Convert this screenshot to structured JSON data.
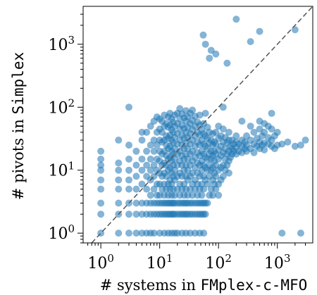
{
  "chart_data": {
    "type": "scatter",
    "xlabel_prefix": "# systems in ",
    "xlabel_code": "FMplex-c-MFO",
    "ylabel_prefix": "# pivots in ",
    "ylabel_code": "Simplex",
    "xscale": "log",
    "yscale": "log",
    "xlim": [
      0.5,
      4000
    ],
    "ylim": [
      0.7,
      4000
    ],
    "grid": false,
    "diagonal": "y = x (dashed)",
    "colors": {
      "points": "#1f77b4",
      "diagonal": "#555555"
    },
    "ticks": {
      "x": [
        {
          "value": 1,
          "base": "10",
          "exp": "0"
        },
        {
          "value": 10,
          "base": "10",
          "exp": "1"
        },
        {
          "value": 100,
          "base": "10",
          "exp": "2"
        },
        {
          "value": 1000,
          "base": "10",
          "exp": "3"
        }
      ],
      "y": [
        {
          "value": 1,
          "base": "10",
          "exp": "0"
        },
        {
          "value": 10,
          "base": "10",
          "exp": "1"
        },
        {
          "value": 100,
          "base": "10",
          "exp": "2"
        },
        {
          "value": 1000,
          "base": "10",
          "exp": "3"
        }
      ]
    },
    "points": [
      [
        1,
        1
      ],
      [
        1,
        2
      ],
      [
        1,
        3
      ],
      [
        1,
        5
      ],
      [
        1,
        7
      ],
      [
        1,
        10
      ],
      [
        1,
        12
      ],
      [
        1,
        15
      ],
      [
        1,
        20
      ],
      [
        2,
        1
      ],
      [
        2,
        2
      ],
      [
        2,
        3
      ],
      [
        2,
        5
      ],
      [
        2,
        7
      ],
      [
        2,
        10
      ],
      [
        2,
        13
      ],
      [
        2,
        30
      ],
      [
        3,
        1
      ],
      [
        3,
        2
      ],
      [
        3,
        3
      ],
      [
        3,
        5
      ],
      [
        3,
        7
      ],
      [
        3,
        10
      ],
      [
        3,
        15
      ],
      [
        3,
        25
      ],
      [
        3,
        100
      ],
      [
        4,
        1
      ],
      [
        4,
        2
      ],
      [
        4,
        3
      ],
      [
        4,
        5
      ],
      [
        4,
        8
      ],
      [
        4,
        12
      ],
      [
        4,
        20
      ],
      [
        5,
        1
      ],
      [
        5,
        2
      ],
      [
        5,
        3
      ],
      [
        5,
        6
      ],
      [
        5,
        10
      ],
      [
        5,
        15
      ],
      [
        5,
        30
      ],
      [
        5,
        40
      ],
      [
        6,
        1
      ],
      [
        6,
        2
      ],
      [
        6,
        3
      ],
      [
        6,
        5
      ],
      [
        6,
        8
      ],
      [
        6,
        12
      ],
      [
        6,
        20
      ],
      [
        6,
        40
      ],
      [
        7,
        1
      ],
      [
        7,
        2
      ],
      [
        7,
        3
      ],
      [
        7,
        4
      ],
      [
        7,
        7
      ],
      [
        7,
        10
      ],
      [
        7,
        15
      ],
      [
        7,
        25
      ],
      [
        7,
        50
      ],
      [
        8,
        1
      ],
      [
        8,
        2
      ],
      [
        8,
        3
      ],
      [
        8,
        5
      ],
      [
        8,
        8
      ],
      [
        8,
        12
      ],
      [
        8,
        20
      ],
      [
        8,
        30
      ],
      [
        8,
        60
      ],
      [
        9,
        2
      ],
      [
        9,
        3
      ],
      [
        9,
        4
      ],
      [
        9,
        6
      ],
      [
        9,
        10
      ],
      [
        9,
        15
      ],
      [
        9,
        25
      ],
      [
        9,
        40
      ],
      [
        9,
        70
      ],
      [
        10,
        1
      ],
      [
        10,
        2
      ],
      [
        10,
        3
      ],
      [
        10,
        4
      ],
      [
        10,
        6
      ],
      [
        10,
        9
      ],
      [
        10,
        14
      ],
      [
        10,
        20
      ],
      [
        10,
        30
      ],
      [
        10,
        45
      ],
      [
        10,
        65
      ],
      [
        11,
        2
      ],
      [
        11,
        3
      ],
      [
        11,
        5
      ],
      [
        11,
        8
      ],
      [
        11,
        12
      ],
      [
        11,
        18
      ],
      [
        11,
        28
      ],
      [
        11,
        40
      ],
      [
        11,
        60
      ],
      [
        12,
        1
      ],
      [
        12,
        2
      ],
      [
        12,
        3
      ],
      [
        12,
        4
      ],
      [
        12,
        6
      ],
      [
        12,
        9
      ],
      [
        12,
        13
      ],
      [
        12,
        20
      ],
      [
        12,
        30
      ],
      [
        12,
        50
      ],
      [
        12,
        75
      ],
      [
        13,
        2
      ],
      [
        13,
        3
      ],
      [
        13,
        5
      ],
      [
        13,
        8
      ],
      [
        13,
        12
      ],
      [
        13,
        17
      ],
      [
        13,
        25
      ],
      [
        13,
        35
      ],
      [
        13,
        55
      ],
      [
        14,
        1
      ],
      [
        14,
        2
      ],
      [
        14,
        3
      ],
      [
        14,
        4
      ],
      [
        14,
        6
      ],
      [
        14,
        10
      ],
      [
        14,
        15
      ],
      [
        14,
        22
      ],
      [
        14,
        32
      ],
      [
        14,
        48
      ],
      [
        14,
        70
      ],
      [
        15,
        2
      ],
      [
        15,
        3
      ],
      [
        15,
        5
      ],
      [
        15,
        7
      ],
      [
        15,
        11
      ],
      [
        15,
        16
      ],
      [
        15,
        24
      ],
      [
        15,
        36
      ],
      [
        15,
        52
      ],
      [
        15,
        80
      ],
      [
        16,
        1
      ],
      [
        16,
        2
      ],
      [
        16,
        3
      ],
      [
        16,
        4
      ],
      [
        16,
        6
      ],
      [
        16,
        9
      ],
      [
        16,
        14
      ],
      [
        16,
        20
      ],
      [
        16,
        30
      ],
      [
        16,
        44
      ],
      [
        16,
        65
      ],
      [
        17,
        2
      ],
      [
        17,
        3
      ],
      [
        17,
        5
      ],
      [
        17,
        8
      ],
      [
        17,
        12
      ],
      [
        17,
        18
      ],
      [
        17,
        27
      ],
      [
        17,
        40
      ],
      [
        17,
        58
      ],
      [
        18,
        1
      ],
      [
        18,
        2
      ],
      [
        18,
        3
      ],
      [
        18,
        4
      ],
      [
        18,
        7
      ],
      [
        18,
        10
      ],
      [
        18,
        15
      ],
      [
        18,
        22
      ],
      [
        18,
        33
      ],
      [
        18,
        50
      ],
      [
        18,
        75
      ],
      [
        20,
        1
      ],
      [
        20,
        2
      ],
      [
        20,
        3
      ],
      [
        20,
        5
      ],
      [
        20,
        8
      ],
      [
        20,
        12
      ],
      [
        20,
        18
      ],
      [
        20,
        26
      ],
      [
        20,
        38
      ],
      [
        20,
        55
      ],
      [
        20,
        80
      ],
      [
        22,
        2
      ],
      [
        22,
        3
      ],
      [
        22,
        4
      ],
      [
        22,
        6
      ],
      [
        22,
        9
      ],
      [
        22,
        14
      ],
      [
        22,
        20
      ],
      [
        22,
        30
      ],
      [
        22,
        45
      ],
      [
        22,
        65
      ],
      [
        22,
        95
      ],
      [
        24,
        1
      ],
      [
        24,
        2
      ],
      [
        24,
        3
      ],
      [
        24,
        5
      ],
      [
        24,
        8
      ],
      [
        24,
        12
      ],
      [
        24,
        17
      ],
      [
        24,
        25
      ],
      [
        24,
        36
      ],
      [
        24,
        52
      ],
      [
        24,
        78
      ],
      [
        26,
        2
      ],
      [
        26,
        3
      ],
      [
        26,
        4
      ],
      [
        26,
        6
      ],
      [
        26,
        10
      ],
      [
        26,
        15
      ],
      [
        26,
        22
      ],
      [
        26,
        32
      ],
      [
        26,
        46
      ],
      [
        26,
        68
      ],
      [
        28,
        1
      ],
      [
        28,
        2
      ],
      [
        28,
        3
      ],
      [
        28,
        5
      ],
      [
        28,
        8
      ],
      [
        28,
        12
      ],
      [
        28,
        18
      ],
      [
        28,
        27
      ],
      [
        28,
        40
      ],
      [
        28,
        60
      ],
      [
        28,
        88
      ],
      [
        30,
        2
      ],
      [
        30,
        3
      ],
      [
        30,
        4
      ],
      [
        30,
        7
      ],
      [
        30,
        10
      ],
      [
        30,
        15
      ],
      [
        30,
        22
      ],
      [
        30,
        33
      ],
      [
        30,
        48
      ],
      [
        30,
        70
      ],
      [
        33,
        1
      ],
      [
        33,
        2
      ],
      [
        33,
        3
      ],
      [
        33,
        5
      ],
      [
        33,
        8
      ],
      [
        33,
        12
      ],
      [
        33,
        18
      ],
      [
        33,
        26
      ],
      [
        33,
        38
      ],
      [
        33,
        55
      ],
      [
        33,
        80
      ],
      [
        36,
        2
      ],
      [
        36,
        3
      ],
      [
        36,
        4
      ],
      [
        36,
        6
      ],
      [
        36,
        9
      ],
      [
        36,
        14
      ],
      [
        36,
        20
      ],
      [
        36,
        30
      ],
      [
        36,
        44
      ],
      [
        36,
        62
      ],
      [
        36,
        90
      ],
      [
        40,
        1
      ],
      [
        40,
        2
      ],
      [
        40,
        3
      ],
      [
        40,
        5
      ],
      [
        40,
        7
      ],
      [
        40,
        11
      ],
      [
        40,
        16
      ],
      [
        40,
        24
      ],
      [
        40,
        35
      ],
      [
        40,
        50
      ],
      [
        40,
        72
      ],
      [
        44,
        2
      ],
      [
        44,
        3
      ],
      [
        44,
        4
      ],
      [
        44,
        6
      ],
      [
        44,
        9
      ],
      [
        44,
        13
      ],
      [
        44,
        19
      ],
      [
        44,
        28
      ],
      [
        44,
        40
      ],
      [
        44,
        58
      ],
      [
        48,
        1
      ],
      [
        48,
        2
      ],
      [
        48,
        3
      ],
      [
        48,
        5
      ],
      [
        48,
        8
      ],
      [
        48,
        12
      ],
      [
        48,
        17
      ],
      [
        48,
        25
      ],
      [
        48,
        36
      ],
      [
        48,
        52
      ],
      [
        48,
        75
      ],
      [
        52,
        2
      ],
      [
        52,
        3
      ],
      [
        52,
        4
      ],
      [
        52,
        6
      ],
      [
        52,
        10
      ],
      [
        52,
        14
      ],
      [
        52,
        20
      ],
      [
        52,
        30
      ],
      [
        52,
        44
      ],
      [
        56,
        1
      ],
      [
        56,
        2
      ],
      [
        56,
        3
      ],
      [
        56,
        5
      ],
      [
        56,
        8
      ],
      [
        56,
        12
      ],
      [
        56,
        18
      ],
      [
        56,
        26
      ],
      [
        56,
        38
      ],
      [
        56,
        55
      ],
      [
        60,
        2
      ],
      [
        60,
        3
      ],
      [
        60,
        7
      ],
      [
        60,
        11
      ],
      [
        60,
        16
      ],
      [
        60,
        24
      ],
      [
        60,
        35
      ],
      [
        60,
        80
      ],
      [
        55,
        1400
      ],
      [
        60,
        1000
      ],
      [
        65,
        3
      ],
      [
        65,
        6
      ],
      [
        65,
        10
      ],
      [
        65,
        15
      ],
      [
        65,
        22
      ],
      [
        65,
        32
      ],
      [
        65,
        48
      ],
      [
        70,
        4
      ],
      [
        70,
        8
      ],
      [
        70,
        12
      ],
      [
        70,
        18
      ],
      [
        70,
        27
      ],
      [
        70,
        40
      ],
      [
        70,
        600
      ],
      [
        75,
        5
      ],
      [
        75,
        10
      ],
      [
        75,
        15
      ],
      [
        75,
        20
      ],
      [
        75,
        30
      ],
      [
        75,
        800
      ],
      [
        80,
        4
      ],
      [
        80,
        7
      ],
      [
        80,
        11
      ],
      [
        80,
        17
      ],
      [
        80,
        25
      ],
      [
        80,
        38
      ],
      [
        85,
        6
      ],
      [
        85,
        9
      ],
      [
        85,
        14
      ],
      [
        85,
        20
      ],
      [
        85,
        28
      ],
      [
        90,
        5
      ],
      [
        90,
        8
      ],
      [
        90,
        12
      ],
      [
        90,
        18
      ],
      [
        90,
        26
      ],
      [
        90,
        40
      ],
      [
        90,
        700
      ],
      [
        100,
        4
      ],
      [
        100,
        6
      ],
      [
        100,
        10
      ],
      [
        100,
        15
      ],
      [
        100,
        21
      ],
      [
        100,
        32
      ],
      [
        100,
        50
      ],
      [
        110,
        7
      ],
      [
        110,
        11
      ],
      [
        110,
        17
      ],
      [
        110,
        24
      ],
      [
        110,
        35
      ],
      [
        120,
        8
      ],
      [
        120,
        12
      ],
      [
        120,
        19
      ],
      [
        120,
        28
      ],
      [
        120,
        45
      ],
      [
        120,
        100
      ],
      [
        130,
        10
      ],
      [
        130,
        15
      ],
      [
        130,
        22
      ],
      [
        130,
        33
      ],
      [
        140,
        12
      ],
      [
        140,
        18
      ],
      [
        140,
        27
      ],
      [
        140,
        500
      ],
      [
        150,
        9
      ],
      [
        150,
        14
      ],
      [
        150,
        20
      ],
      [
        150,
        30
      ],
      [
        150,
        40
      ],
      [
        160,
        16
      ],
      [
        160,
        24
      ],
      [
        170,
        18
      ],
      [
        170,
        22
      ],
      [
        170,
        30
      ],
      [
        180,
        20
      ],
      [
        180,
        26
      ],
      [
        200,
        18
      ],
      [
        200,
        23
      ],
      [
        200,
        28
      ],
      [
        200,
        35
      ],
      [
        220,
        20
      ],
      [
        220,
        26
      ],
      [
        250,
        19
      ],
      [
        250,
        24
      ],
      [
        250,
        30
      ],
      [
        250,
        60
      ],
      [
        280,
        22
      ],
      [
        280,
        28
      ],
      [
        300,
        20
      ],
      [
        300,
        25
      ],
      [
        300,
        35
      ],
      [
        350,
        22
      ],
      [
        350,
        30
      ],
      [
        350,
        50
      ],
      [
        350,
        1100
      ],
      [
        400,
        19
      ],
      [
        400,
        26
      ],
      [
        400,
        40
      ],
      [
        450,
        24
      ],
      [
        450,
        32
      ],
      [
        500,
        22
      ],
      [
        500,
        28
      ],
      [
        500,
        45
      ],
      [
        500,
        60
      ],
      [
        500,
        1600
      ],
      [
        550,
        25
      ],
      [
        550,
        35
      ],
      [
        600,
        21
      ],
      [
        600,
        27
      ],
      [
        600,
        40
      ],
      [
        600,
        55
      ],
      [
        700,
        26
      ],
      [
        700,
        33
      ],
      [
        700,
        50
      ],
      [
        800,
        24
      ],
      [
        800,
        30
      ],
      [
        800,
        45
      ],
      [
        800,
        80
      ],
      [
        900,
        22
      ],
      [
        900,
        35
      ],
      [
        1000,
        25
      ],
      [
        1000,
        40
      ],
      [
        1200,
        26
      ],
      [
        1200,
        1
      ],
      [
        1500,
        28
      ],
      [
        2000,
        24
      ],
      [
        2000,
        1700
      ],
      [
        2500,
        25
      ],
      [
        2500,
        1
      ],
      [
        3000,
        30
      ],
      [
        200,
        2500
      ]
    ]
  }
}
